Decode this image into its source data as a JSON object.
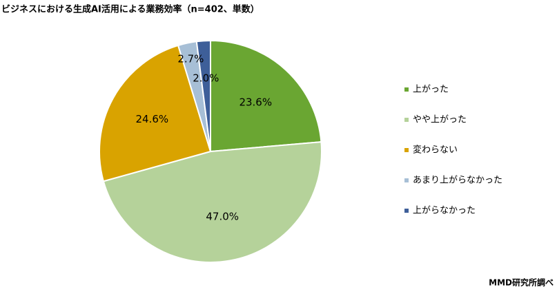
{
  "chart_data": {
    "type": "pie",
    "title": "ビジネスにおける生成AI活用による業務効率（n=402、単数）",
    "categories": [
      "上がった",
      "やや上がった",
      "変わらない",
      "あまり上がらなかった",
      "上がらなかった"
    ],
    "values": [
      23.6,
      47.0,
      24.6,
      2.7,
      2.0
    ],
    "value_labels": [
      "23.6%",
      "47.0%",
      "24.6%",
      "2.7%",
      "2.0%"
    ],
    "colors": [
      "#6aa632",
      "#b5d29a",
      "#d9a300",
      "#a7bfd6",
      "#3e5f99"
    ],
    "legend": "right",
    "source": "MMD研究所調べ"
  }
}
